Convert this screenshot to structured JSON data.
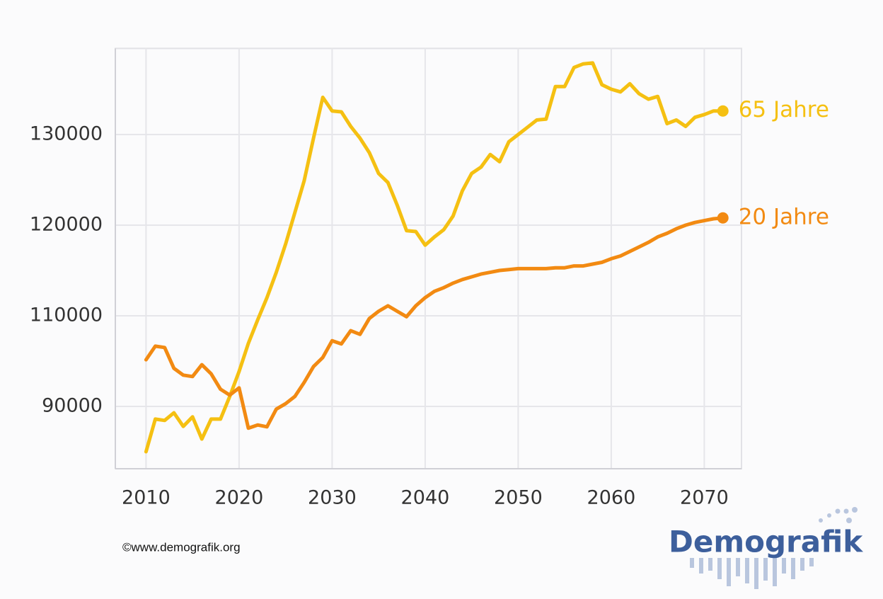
{
  "chart_data": {
    "type": "line",
    "x": [
      2010,
      2011,
      2012,
      2013,
      2014,
      2015,
      2016,
      2017,
      2018,
      2019,
      2020,
      2021,
      2022,
      2023,
      2024,
      2025,
      2026,
      2027,
      2028,
      2029,
      2030,
      2031,
      2032,
      2033,
      2034,
      2035,
      2036,
      2037,
      2038,
      2039,
      2040,
      2041,
      2042,
      2043,
      2044,
      2045,
      2046,
      2047,
      2048,
      2049,
      2050,
      2051,
      2052,
      2053,
      2054,
      2055,
      2056,
      2057,
      2058,
      2059,
      2060,
      2061,
      2062,
      2063,
      2064,
      2065,
      2066,
      2067,
      2068,
      2069,
      2070,
      2071,
      2072
    ],
    "series": [
      {
        "name": "65 Jahre",
        "color": "#f5c012",
        "values": [
          80000,
          87200,
          86900,
          88600,
          85600,
          87700,
          82800,
          87200,
          87200,
          92200,
          97700,
          103900,
          109100,
          112000,
          114800,
          117900,
          121400,
          124900,
          129600,
          134100,
          132600,
          132500,
          130900,
          129600,
          128000,
          125700,
          124700,
          122200,
          119400,
          119300,
          117800,
          118700,
          119500,
          121000,
          123800,
          125700,
          126400,
          127800,
          127000,
          129200,
          130000,
          130800,
          131600,
          131700,
          135300,
          135300,
          137400,
          137800,
          137900,
          135500,
          135000,
          134700,
          135600,
          134500,
          133900,
          134200,
          131200,
          131600,
          130900,
          131900,
          132200,
          132600,
          132600
        ]
      },
      {
        "name": "20 Jahre",
        "color": "#f28a12",
        "values": [
          100300,
          103300,
          103000,
          98400,
          96900,
          96600,
          99200,
          97200,
          93800,
          92500,
          94100,
          85200,
          85900,
          85500,
          89400,
          90600,
          92200,
          95300,
          98800,
          100800,
          104500,
          103800,
          106700,
          105900,
          109400,
          110500,
          111100,
          110500,
          109800,
          111100,
          112000,
          112700,
          113100,
          113600,
          114000,
          114300,
          114600,
          114800,
          115000,
          115100,
          115200,
          115200,
          115200,
          115200,
          115300,
          115300,
          115500,
          115500,
          115700,
          115900,
          116300,
          116600,
          117100,
          117600,
          118100,
          118700,
          119100,
          119600,
          120000,
          120300,
          120500,
          120700,
          120800
        ]
      }
    ],
    "xlim": [
      2006.7,
      2074
    ],
    "xticks": [
      2010,
      2020,
      2030,
      2040,
      2050,
      2060,
      2070
    ],
    "ylim": [
      76250,
      139500
    ],
    "yticks": [
      90000,
      110000,
      120000,
      130000
    ],
    "grid": true,
    "source": "©www.demografik.org",
    "logo": "Demografik"
  }
}
